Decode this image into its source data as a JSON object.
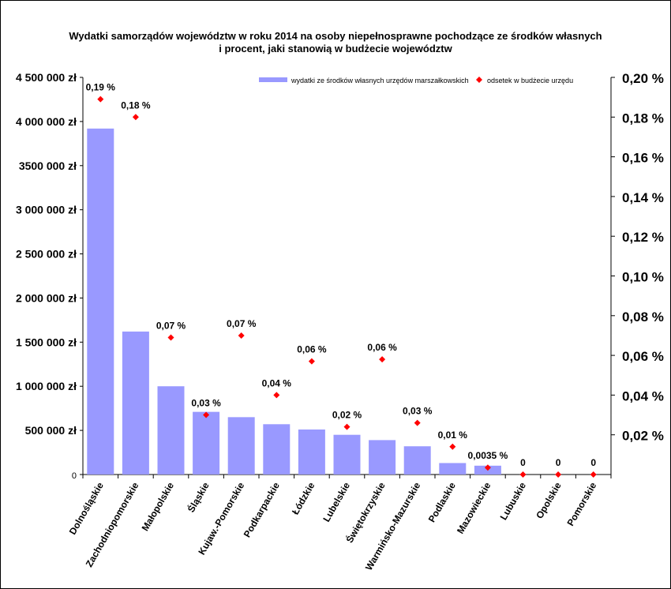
{
  "chart_data": {
    "type": "bar",
    "title_lines": [
      "Wydatki samorządów województw w roku 2014 na osoby niepełnosprawne pochodzące ze środków własnych",
      "i procent, jaki stanowią w budżecie województw"
    ],
    "categories": [
      "Dolnośląskie",
      "Zachodniopomorskie",
      "Małopolskie",
      "Śląskie",
      "Kujaw.-Pomorskie",
      "Podkarpackie",
      "Łódzkie",
      "Lubelskie",
      "Świętokrzyskie",
      "Warmińsko-Mazurskie",
      "Podlaskie",
      "Mazowieckie",
      "Lubuskie",
      "Opolskie",
      "Pomorskie"
    ],
    "series": [
      {
        "name": "wydatki ze środków własnych urzędów marszałkowskich",
        "type": "bar",
        "axis": "left",
        "color": "#9999ff",
        "values": [
          3920000,
          1620000,
          1000000,
          710000,
          650000,
          570000,
          510000,
          450000,
          390000,
          320000,
          130000,
          100000,
          0,
          0,
          0
        ]
      },
      {
        "name": "odsetek w budżecie urzędu",
        "type": "scatter",
        "axis": "right",
        "color": "#ff0000",
        "marker": "diamond",
        "values": [
          0.189,
          0.18,
          0.069,
          0.03,
          0.07,
          0.04,
          0.057,
          0.024,
          0.058,
          0.026,
          0.014,
          0.0035,
          0,
          0,
          0
        ],
        "data_labels": [
          "0,19 %",
          "0,18 %",
          "0,07 %",
          "0,03 %",
          "0,07 %",
          "0,04 %",
          "0,06 %",
          "0,02 %",
          "0,06 %",
          "0,03 %",
          "0,01 %",
          "0,0035 %",
          "0",
          "0",
          "0"
        ]
      }
    ],
    "left_axis": {
      "ylim": [
        0,
        4500000
      ],
      "ticks": [
        0,
        500000,
        1000000,
        1500000,
        2000000,
        2500000,
        3000000,
        3500000,
        4000000,
        4500000
      ],
      "tick_labels": [
        "0",
        "500 000 zł",
        "1 000 000 zł",
        "1 500 000 zł",
        "2 000 000 zł",
        "2 500 000 zł",
        "3 000 000 zł",
        "3500 000 zł",
        "4 000 000 zł",
        "4 500 000 zł"
      ]
    },
    "right_axis": {
      "ylim": [
        0,
        0.2
      ],
      "ticks": [
        0.02,
        0.04,
        0.06,
        0.08,
        0.1,
        0.12,
        0.14,
        0.16,
        0.18,
        0.2
      ],
      "tick_labels": [
        "0,02 %",
        "0,04 %",
        "0,06 %",
        "0,08 %",
        "0,10 %",
        "0,12 %",
        "0,14 %",
        "0,16 %",
        "0,18 %",
        "0,20 %"
      ]
    },
    "grid": false,
    "legend_position": "top-right"
  }
}
